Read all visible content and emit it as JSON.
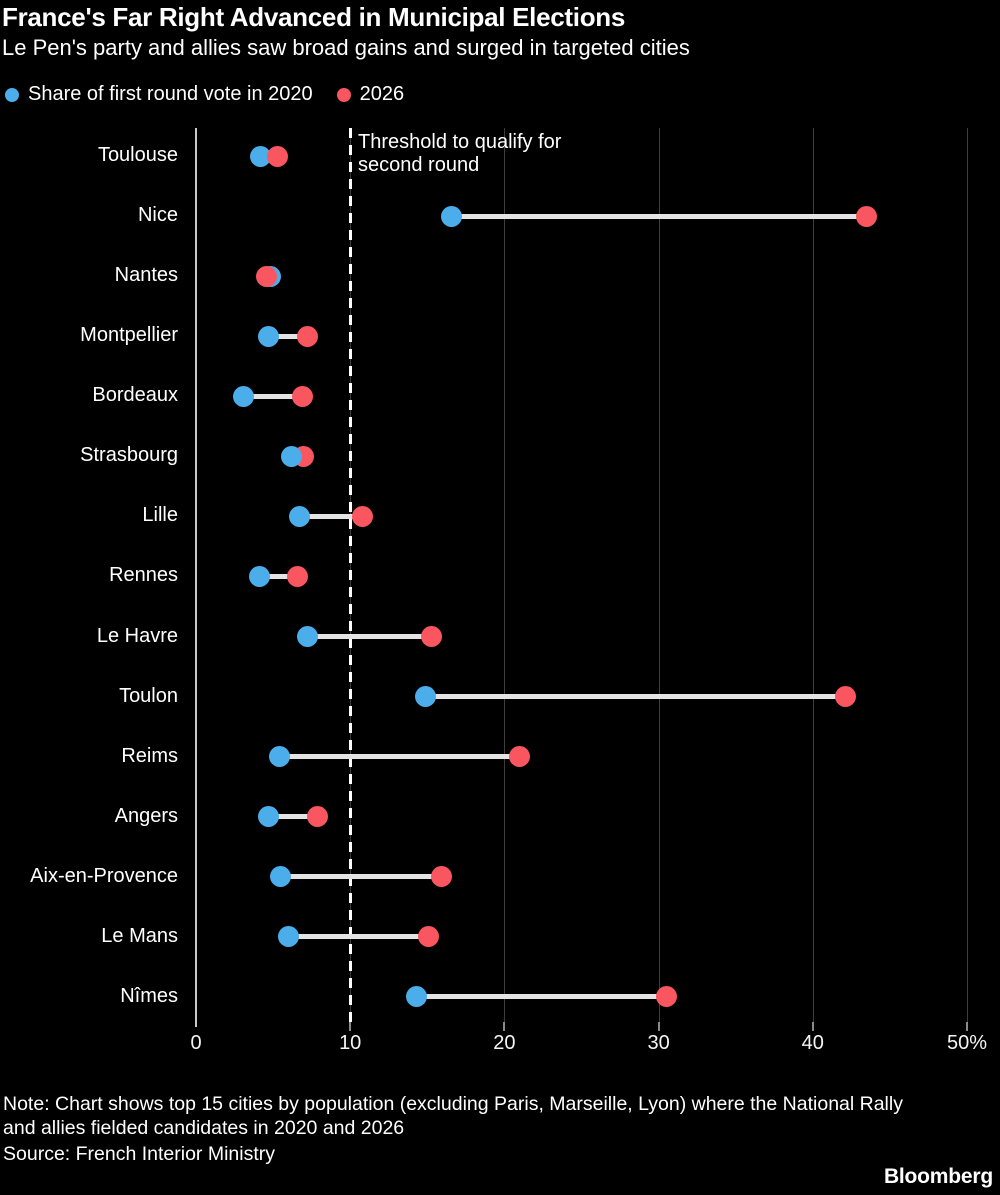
{
  "header": {
    "title": "France's Far Right Advanced in Municipal Elections",
    "subtitle": "Le Pen's party and allies saw broad gains and surged in targeted cities"
  },
  "legend": [
    {
      "label": "Share of first round vote in 2020",
      "color": "#4BADE9"
    },
    {
      "label": "2026",
      "color": "#F9565F"
    }
  ],
  "chart_data": {
    "type": "dumbbell",
    "title": "France's Far Right Advanced in Municipal Elections",
    "subtitle": "Le Pen's party and allies saw broad gains and surged in targeted cities",
    "categories": [
      "Toulouse",
      "Nice",
      "Nantes",
      "Montpellier",
      "Bordeaux",
      "Strasbourg",
      "Lille",
      "Rennes",
      "Le Havre",
      "Toulon",
      "Reims",
      "Angers",
      "Aix-en-Provence",
      "Le Mans",
      "Nîmes"
    ],
    "series": [
      {
        "name": "Share of first round vote in 2020",
        "color": "#4BADE9",
        "values": [
          4.2,
          16.6,
          4.8,
          4.7,
          3.1,
          6.2,
          6.7,
          4.1,
          7.2,
          14.9,
          5.4,
          4.7,
          5.5,
          6.0,
          14.3
        ]
      },
      {
        "name": "2026",
        "color": "#F9565F",
        "values": [
          5.3,
          43.5,
          4.6,
          7.2,
          6.9,
          7.0,
          10.8,
          6.6,
          15.3,
          42.1,
          21.0,
          7.9,
          15.9,
          15.1,
          30.5
        ]
      }
    ],
    "top_dot": [
      "2026",
      "2026",
      "2026",
      "2026",
      "2026",
      "2020",
      "2026",
      "2026",
      "2026",
      "2026",
      "2026",
      "2026",
      "2026",
      "2026",
      "2026"
    ],
    "x_axis": {
      "min": 0,
      "max": 50,
      "ticks": [
        0,
        10,
        20,
        30,
        40,
        50
      ],
      "tick_labels": [
        "0",
        "10",
        "20",
        "30",
        "40",
        "50%"
      ]
    },
    "threshold": {
      "value": 10,
      "label_line1": "Threshold to qualify for",
      "label_line2": "second round"
    },
    "grid": true,
    "legend_position": "top"
  },
  "footer": {
    "note_line1": "Note: Chart shows top 15 cities by population (excluding Paris, Marseille, Lyon) where the National Rally",
    "note_line2": "and allies fielded candidates in 2020 and 2026",
    "source": "Source: French Interior Ministry",
    "brand": "Bloomberg"
  }
}
